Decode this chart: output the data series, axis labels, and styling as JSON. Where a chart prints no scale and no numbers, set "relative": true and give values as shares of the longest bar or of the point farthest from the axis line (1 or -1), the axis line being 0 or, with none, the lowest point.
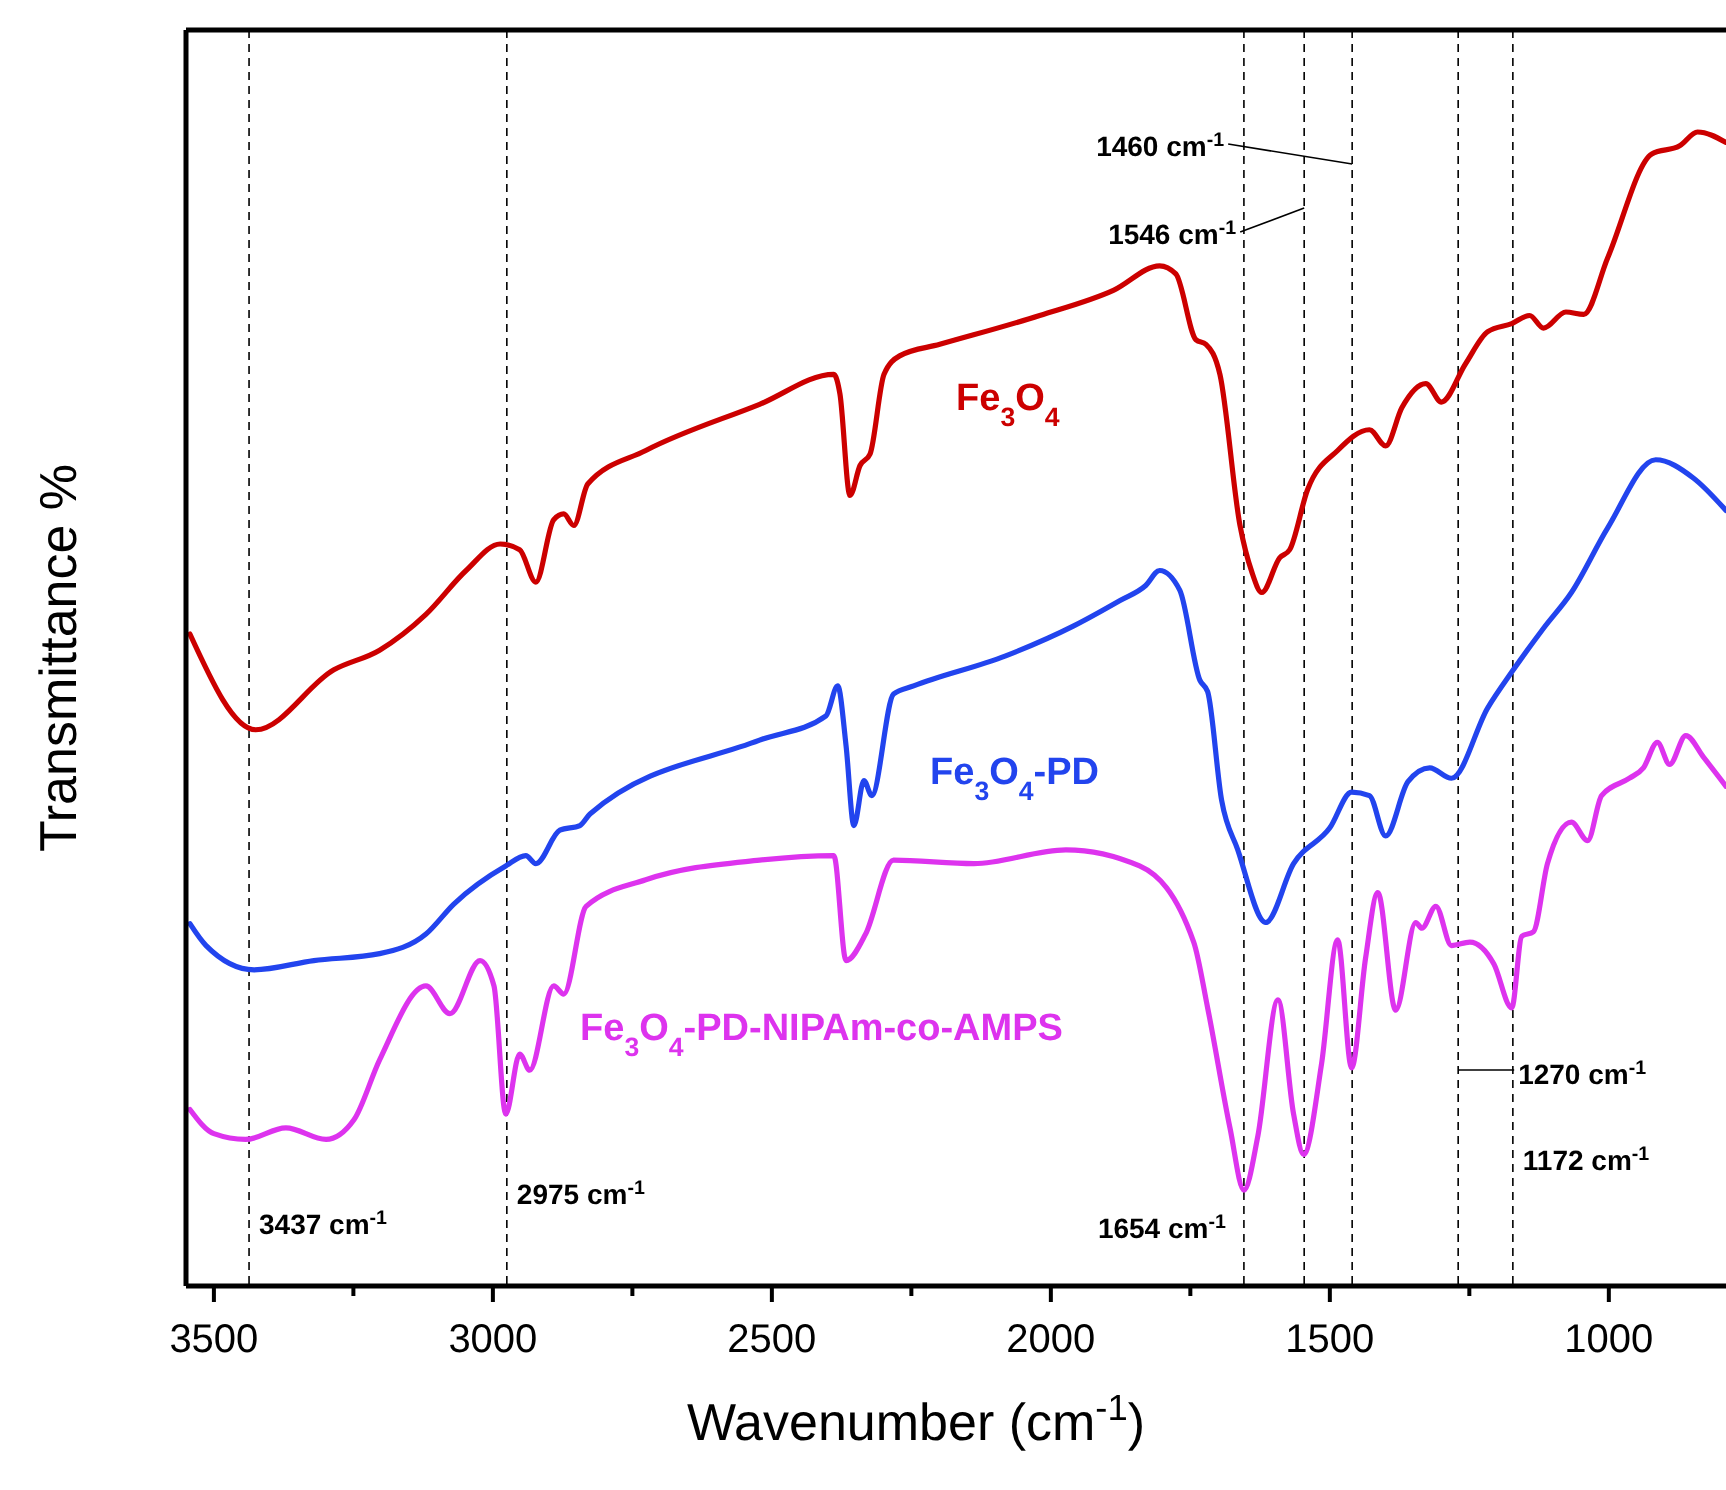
{
  "chart_data": {
    "type": "line",
    "relative": true,
    "xlabel": "Wavenumber (cm$^{-1}$)",
    "ylabel": "Transmittance %",
    "xlim": [
      3550,
      790
    ],
    "xticks": [
      3500,
      {
        "value": 3250,
        "label": null
      },
      3000,
      {
        "value": 2750,
        "label": null
      },
      2500,
      {
        "value": 2250,
        "label": null
      },
      2000,
      {
        "value": 1750,
        "label": null
      },
      1500,
      {
        "value": 1250,
        "label": null
      },
      1000
    ],
    "grid": false,
    "marker": "none",
    "line_style": "solid",
    "series": [
      {
        "name": "Fe$_{3}$O$_{4}$",
        "color": "#cc0000",
        "x": [
          3543,
          3425,
          3285,
          3203,
          3120,
          3048,
          2987,
          2952,
          2923,
          2891,
          2873,
          2855,
          2830,
          2726,
          2522,
          2389,
          2378,
          2360,
          2342,
          2324,
          2299,
          2271,
          2199,
          2020,
          1887,
          1805,
          1776,
          1740,
          1722,
          1697,
          1661,
          1640,
          1622,
          1590,
          1572,
          1540,
          1486,
          1429,
          1400,
          1371,
          1328,
          1300,
          1257,
          1217,
          1174,
          1142,
          1117,
          1077,
          1045,
          1002,
          923,
          873,
          841,
          790
        ],
        "values": [
          0.565,
          0.482,
          0.534,
          0.551,
          0.582,
          0.62,
          0.643,
          0.638,
          0.61,
          0.664,
          0.669,
          0.659,
          0.695,
          0.724,
          0.764,
          0.79,
          0.773,
          0.685,
          0.711,
          0.721,
          0.79,
          0.806,
          0.816,
          0.841,
          0.863,
          0.884,
          0.877,
          0.82,
          0.816,
          0.79,
          0.659,
          0.619,
          0.601,
          0.631,
          0.638,
          0.69,
          0.724,
          0.742,
          0.728,
          0.761,
          0.782,
          0.766,
          0.799,
          0.827,
          0.834,
          0.841,
          0.83,
          0.844,
          0.842,
          0.891,
          0.981,
          0.988,
          1.0,
          0.991
        ]
      },
      {
        "name": "Fe$_{3}$O$_{4}$-PD",
        "color": "#2244ee",
        "x": [
          3543,
          3514,
          3428,
          3321,
          3203,
          3120,
          3070,
          2977,
          2941,
          2923,
          2880,
          2844,
          2826,
          2522,
          2403,
          2382,
          2367,
          2353,
          2335,
          2321,
          2282,
          2246,
          2081,
          1959,
          1876,
          1830,
          1805,
          1769,
          1733,
          1719,
          1694,
          1665,
          1615,
          1565,
          1500,
          1461,
          1429,
          1400,
          1360,
          1321,
          1282,
          1217,
          1174,
          1117,
          1067,
          1002,
          916,
          848,
          790
        ],
        "values": [
          0.314,
          0.295,
          0.274,
          0.282,
          0.288,
          0.305,
          0.331,
          0.364,
          0.373,
          0.366,
          0.395,
          0.399,
          0.409,
          0.473,
          0.494,
          0.52,
          0.468,
          0.399,
          0.438,
          0.425,
          0.513,
          0.52,
          0.546,
          0.572,
          0.594,
          0.607,
          0.62,
          0.603,
          0.525,
          0.515,
          0.421,
          0.378,
          0.315,
          0.366,
          0.397,
          0.428,
          0.425,
          0.39,
          0.437,
          0.449,
          0.44,
          0.501,
          0.532,
          0.57,
          0.601,
          0.657,
          0.716,
          0.7,
          0.672
        ]
      },
      {
        "name": "Fe$_{3}$O$_{4}$-PD-NIPAm-co-AMPS",
        "color": "#dd33ee",
        "x": [
          3543,
          3500,
          3443,
          3371,
          3299,
          3249,
          3203,
          3120,
          3077,
          3023,
          2998,
          2977,
          2952,
          2934,
          2891,
          2873,
          2833,
          2726,
          2522,
          2389,
          2367,
          2332,
          2282,
          2138,
          1973,
          1841,
          1744,
          1719,
          1679,
          1654,
          1629,
          1593,
          1565,
          1547,
          1515,
          1486,
          1461,
          1436,
          1414,
          1382,
          1346,
          1335,
          1310,
          1282,
          1249,
          1206,
          1174,
          1156,
          1135,
          1110,
          1067,
          1038,
          1013,
          963,
          938,
          913,
          891,
          862,
          830,
          790
        ],
        "values": [
          0.153,
          0.132,
          0.127,
          0.137,
          0.127,
          0.144,
          0.196,
          0.26,
          0.236,
          0.282,
          0.26,
          0.149,
          0.201,
          0.187,
          0.26,
          0.253,
          0.329,
          0.352,
          0.369,
          0.373,
          0.282,
          0.305,
          0.369,
          0.366,
          0.378,
          0.364,
          0.298,
          0.241,
          0.137,
          0.083,
          0.13,
          0.248,
          0.149,
          0.114,
          0.192,
          0.3,
          0.189,
          0.284,
          0.341,
          0.239,
          0.315,
          0.31,
          0.329,
          0.295,
          0.298,
          0.279,
          0.241,
          0.303,
          0.307,
          0.366,
          0.402,
          0.386,
          0.425,
          0.44,
          0.449,
          0.471,
          0.452,
          0.477,
          0.458,
          0.433
        ]
      }
    ],
    "ref_lines": [
      {
        "axis": "x",
        "value": 3437,
        "label": "3437 cm$^{-1}$",
        "color": "#000000",
        "line_style": "dashed"
      },
      {
        "axis": "x",
        "value": 2975,
        "label": "2975 cm$^{-1}$",
        "color": "#000000",
        "line_style": "dashed"
      },
      {
        "axis": "x",
        "value": 1654,
        "label": "1654 cm$^{-1}$",
        "color": "#000000",
        "line_style": "dashed"
      },
      {
        "axis": "x",
        "value": 1546,
        "label": "1546 cm$^{-1}$",
        "color": "#000000",
        "line_style": "dashed"
      },
      {
        "axis": "x",
        "value": 1460,
        "label": "1460 cm$^{-1}$",
        "color": "#000000",
        "line_style": "dashed"
      },
      {
        "axis": "x",
        "value": 1270,
        "label": "1270 cm$^{-1}$",
        "color": "#000000",
        "line_style": "dashed"
      },
      {
        "axis": "x",
        "value": 1172,
        "label": "1172 cm$^{-1}$",
        "color": "#000000",
        "line_style": "dashed"
      }
    ]
  }
}
